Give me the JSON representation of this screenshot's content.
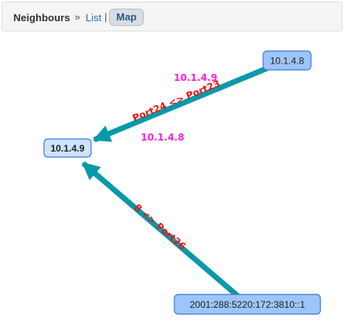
{
  "breadcrumb": {
    "title": "Neighbours",
    "separator": "»",
    "list_link": "List",
    "divider": "|",
    "map_button": "Map"
  },
  "colors": {
    "edge": "#0899a8",
    "ip_label": "#ff22dd",
    "port_label": "#ee1111",
    "node_fill": "#9ec5f8",
    "node_fill_selected": "#cfe2fb",
    "node_border": "#3d78d6"
  },
  "nodes": [
    {
      "id": "n1",
      "label": "10.1.4.9",
      "selected": true
    },
    {
      "id": "n2",
      "label": "10.1.4.8",
      "selected": false
    },
    {
      "id": "n3",
      "label": "2001:288:5220:172:3810::1",
      "selected": false
    }
  ],
  "edges": [
    {
      "from": "n2",
      "to": "n1",
      "port_label": "Port24 <> Port23",
      "ip_top": "10.1.4.9",
      "ip_bottom": "10.1.4.8"
    },
    {
      "from": "n3",
      "to": "n1",
      "port_label": "8 <> Port26"
    }
  ]
}
